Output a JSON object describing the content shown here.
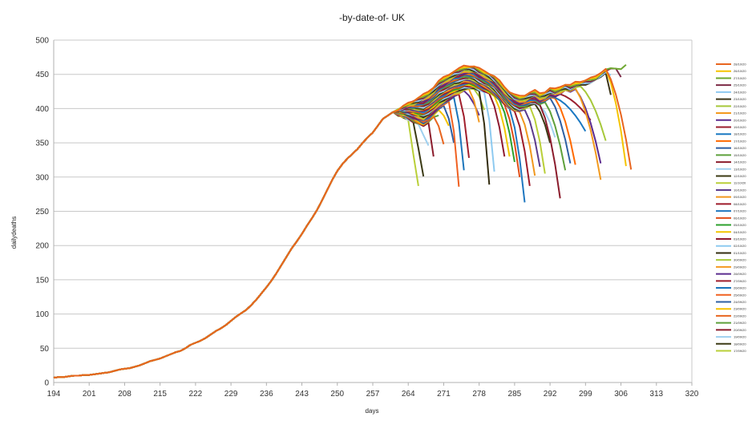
{
  "chart_data": {
    "type": "line",
    "title": "-by-date-of- UK",
    "xlabel": "days",
    "ylabel": "dailydeaths",
    "xlim": [
      194,
      320
    ],
    "ylim": [
      0,
      500
    ],
    "xticks": [
      194,
      201,
      208,
      215,
      222,
      229,
      236,
      243,
      250,
      257,
      264,
      271,
      278,
      285,
      292,
      299,
      306,
      313,
      320
    ],
    "yticks": [
      0,
      50,
      100,
      150,
      200,
      250,
      300,
      350,
      400,
      450,
      500
    ],
    "grid": "horizontal",
    "legend_position": "right",
    "base_curve": {
      "x": [
        194,
        195,
        196,
        197,
        198,
        199,
        200,
        201,
        202,
        203,
        204,
        205,
        206,
        207,
        208,
        209,
        210,
        211,
        212,
        213,
        214,
        215,
        216,
        217,
        218,
        219,
        220,
        221,
        222,
        223,
        224,
        225,
        226,
        227,
        228,
        229,
        230,
        231,
        232,
        233,
        234,
        235,
        236,
        237,
        238,
        239,
        240,
        241,
        242,
        243,
        244,
        245,
        246,
        247,
        248,
        249,
        250,
        251,
        252,
        253,
        254,
        255,
        256,
        257,
        258,
        259,
        260,
        261
      ],
      "y": [
        7,
        8,
        8,
        9,
        10,
        10,
        11,
        11,
        12,
        13,
        14,
        15,
        17,
        19,
        20,
        21,
        23,
        25,
        28,
        31,
        33,
        35,
        38,
        41,
        44,
        46,
        50,
        55,
        58,
        61,
        65,
        70,
        75,
        79,
        84,
        90,
        96,
        101,
        106,
        113,
        121,
        130,
        139,
        149,
        160,
        172,
        184,
        196,
        206,
        217,
        229,
        240,
        252,
        266,
        281,
        296,
        309,
        319,
        327,
        334,
        341,
        350,
        358,
        365,
        375,
        385,
        390,
        395
      ]
    },
    "series": [
      {
        "name": "28/10/20",
        "color": "#e8651f",
        "peak_x": 303,
        "end_x": 308,
        "end_y": 311
      },
      {
        "name": "26/10/20",
        "color": "#f5c400",
        "peak_x": 303,
        "end_x": 307,
        "end_y": 316
      },
      {
        "name": "27/10/20",
        "color": "#6fa832",
        "peak_x": 307,
        "end_x": 307,
        "end_y": 464
      },
      {
        "name": "25/10/20",
        "color": "#7b2a45",
        "peak_x": 305,
        "end_x": 306,
        "end_y": 446
      },
      {
        "name": "24/10/20",
        "color": "#8ec9f0",
        "peak_x": 303,
        "end_x": 304,
        "end_y": 449
      },
      {
        "name": "23/10/20",
        "color": "#3d3519",
        "peak_x": 303,
        "end_x": 304,
        "end_y": 420
      },
      {
        "name": "22/10/20",
        "color": "#a6c83a",
        "peak_x": 298,
        "end_x": 303,
        "end_y": 353
      },
      {
        "name": "21/10/20",
        "color": "#f39a1e",
        "peak_x": 297,
        "end_x": 302,
        "end_y": 296
      },
      {
        "name": "20/10/20",
        "color": "#5a2a8e",
        "peak_x": 297,
        "end_x": 302,
        "end_y": 320
      },
      {
        "name": "19/10/20",
        "color": "#9b1f2e",
        "peak_x": 294,
        "end_x": 300,
        "end_y": 383
      },
      {
        "name": "18/10/20",
        "color": "#1a78c2",
        "peak_x": 293,
        "end_x": 299,
        "end_y": 367
      },
      {
        "name": "17/10/20",
        "color": "#ff6a00",
        "peak_x": 293,
        "end_x": 297,
        "end_y": 318
      },
      {
        "name": "16/10/20",
        "color": "#2e5fa3",
        "peak_x": 292,
        "end_x": 296,
        "end_y": 320
      },
      {
        "name": "15/10/20",
        "color": "#5ea03b",
        "peak_x": 291,
        "end_x": 295,
        "end_y": 310
      },
      {
        "name": "14/10/20",
        "color": "#8b1c2c",
        "peak_x": 290,
        "end_x": 294,
        "end_y": 269
      },
      {
        "name": "13/10/20",
        "color": "#9fd0ef",
        "peak_x": 290,
        "end_x": 293,
        "end_y": 358
      },
      {
        "name": "12/10/20",
        "color": "#3b3a14",
        "peak_x": 289,
        "end_x": 292,
        "end_y": 350
      },
      {
        "name": "11/10/20",
        "color": "#b9cf38",
        "peak_x": 288,
        "end_x": 291,
        "end_y": 305
      },
      {
        "name": "10/10/20",
        "color": "#5b3b8c",
        "peak_x": 287,
        "end_x": 290,
        "end_y": 315
      },
      {
        "name": "09/10/20",
        "color": "#f0981e",
        "peak_x": 286,
        "end_x": 289,
        "end_y": 302
      },
      {
        "name": "08/10/20",
        "color": "#9e1b2a",
        "peak_x": 285,
        "end_x": 288,
        "end_y": 287
      },
      {
        "name": "07/10/20",
        "color": "#1f77c0",
        "peak_x": 284,
        "end_x": 287,
        "end_y": 263
      },
      {
        "name": "06/10/20",
        "color": "#e04e18",
        "peak_x": 283,
        "end_x": 286,
        "end_y": 300
      },
      {
        "name": "05/10/20",
        "color": "#2ca02c",
        "peak_x": 282,
        "end_x": 285,
        "end_y": 322
      },
      {
        "name": "04/10/20",
        "color": "#f2c500",
        "peak_x": 281,
        "end_x": 284,
        "end_y": 330
      },
      {
        "name": "03/10/20",
        "color": "#8e1a30",
        "peak_x": 280,
        "end_x": 283,
        "end_y": 330
      },
      {
        "name": "02/10/20",
        "color": "#8ecaf0",
        "peak_x": 279,
        "end_x": 281,
        "end_y": 308
      },
      {
        "name": "01/10/20",
        "color": "#332d10",
        "peak_x": 278,
        "end_x": 280,
        "end_y": 289
      },
      {
        "name": "30/09/20",
        "color": "#a9c93a",
        "peak_x": 277,
        "end_x": 279,
        "end_y": 398
      },
      {
        "name": "29/09/20",
        "color": "#f49a20",
        "peak_x": 276,
        "end_x": 278,
        "end_y": 380
      },
      {
        "name": "28/09/20",
        "color": "#5c2d8f",
        "peak_x": 275,
        "end_x": 278,
        "end_y": 390
      },
      {
        "name": "27/09/20",
        "color": "#a01e2c",
        "peak_x": 274,
        "end_x": 276,
        "end_y": 328
      },
      {
        "name": "26/09/20",
        "color": "#1b75bb",
        "peak_x": 273,
        "end_x": 275,
        "end_y": 310
      },
      {
        "name": "25/09/20",
        "color": "#f06020",
        "peak_x": 272,
        "end_x": 274,
        "end_y": 286
      },
      {
        "name": "24/09/20",
        "color": "#2e5fa3",
        "peak_x": 271,
        "end_x": 273,
        "end_y": 350
      },
      {
        "name": "23/09/20",
        "color": "#f5c200",
        "peak_x": 270,
        "end_x": 272,
        "end_y": 375
      },
      {
        "name": "22/09/20",
        "color": "#e8651f",
        "peak_x": 269,
        "end_x": 271,
        "end_y": 348
      },
      {
        "name": "21/09/20",
        "color": "#5ea03b",
        "peak_x": 269,
        "end_x": 270,
        "end_y": 390
      },
      {
        "name": "20/09/20",
        "color": "#8b1c2c",
        "peak_x": 268,
        "end_x": 269,
        "end_y": 330
      },
      {
        "name": "19/09/20",
        "color": "#9fd0ef",
        "peak_x": 266,
        "end_x": 268,
        "end_y": 346
      },
      {
        "name": "18/09/20",
        "color": "#3b3a14",
        "peak_x": 265,
        "end_x": 267,
        "end_y": 301
      },
      {
        "name": "17/09/20",
        "color": "#b9cf38",
        "peak_x": 264,
        "end_x": 266,
        "end_y": 287
      }
    ]
  }
}
